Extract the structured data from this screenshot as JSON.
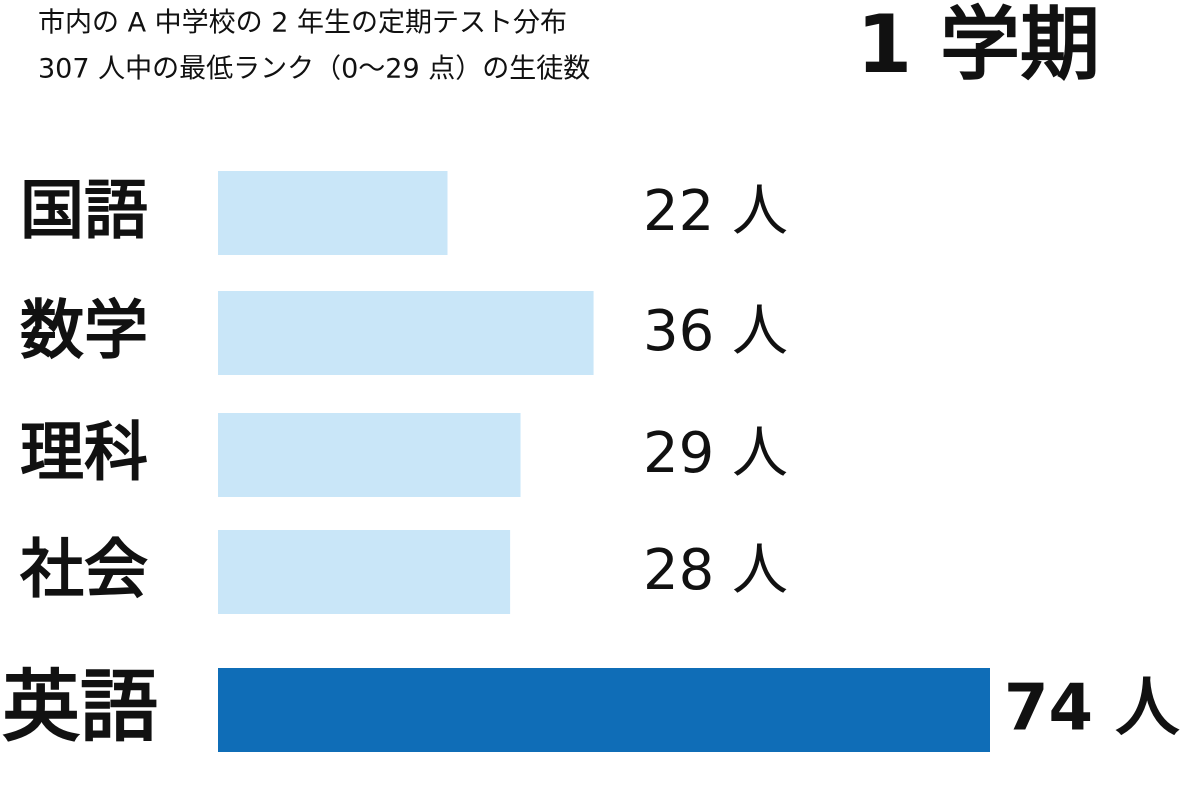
{
  "chart_data": {
    "type": "hbar",
    "title": "1 学期",
    "subtitle": [
      "市内の A 中学校の 2 年生の定期テスト分布",
      "307 人中の最低ランク（0〜29 点）の生徒数"
    ],
    "categories": [
      "国語",
      "数学",
      "理科",
      "社会",
      "英語"
    ],
    "values": [
      22,
      36,
      29,
      28,
      74
    ],
    "value_labels": [
      "22 人",
      "36 人",
      "29 人",
      "28 人",
      "74 人"
    ],
    "colors": [
      "#c9e6f8",
      "#c9e6f8",
      "#c9e6f8",
      "#c9e6f8",
      "#0f6db7"
    ]
  }
}
